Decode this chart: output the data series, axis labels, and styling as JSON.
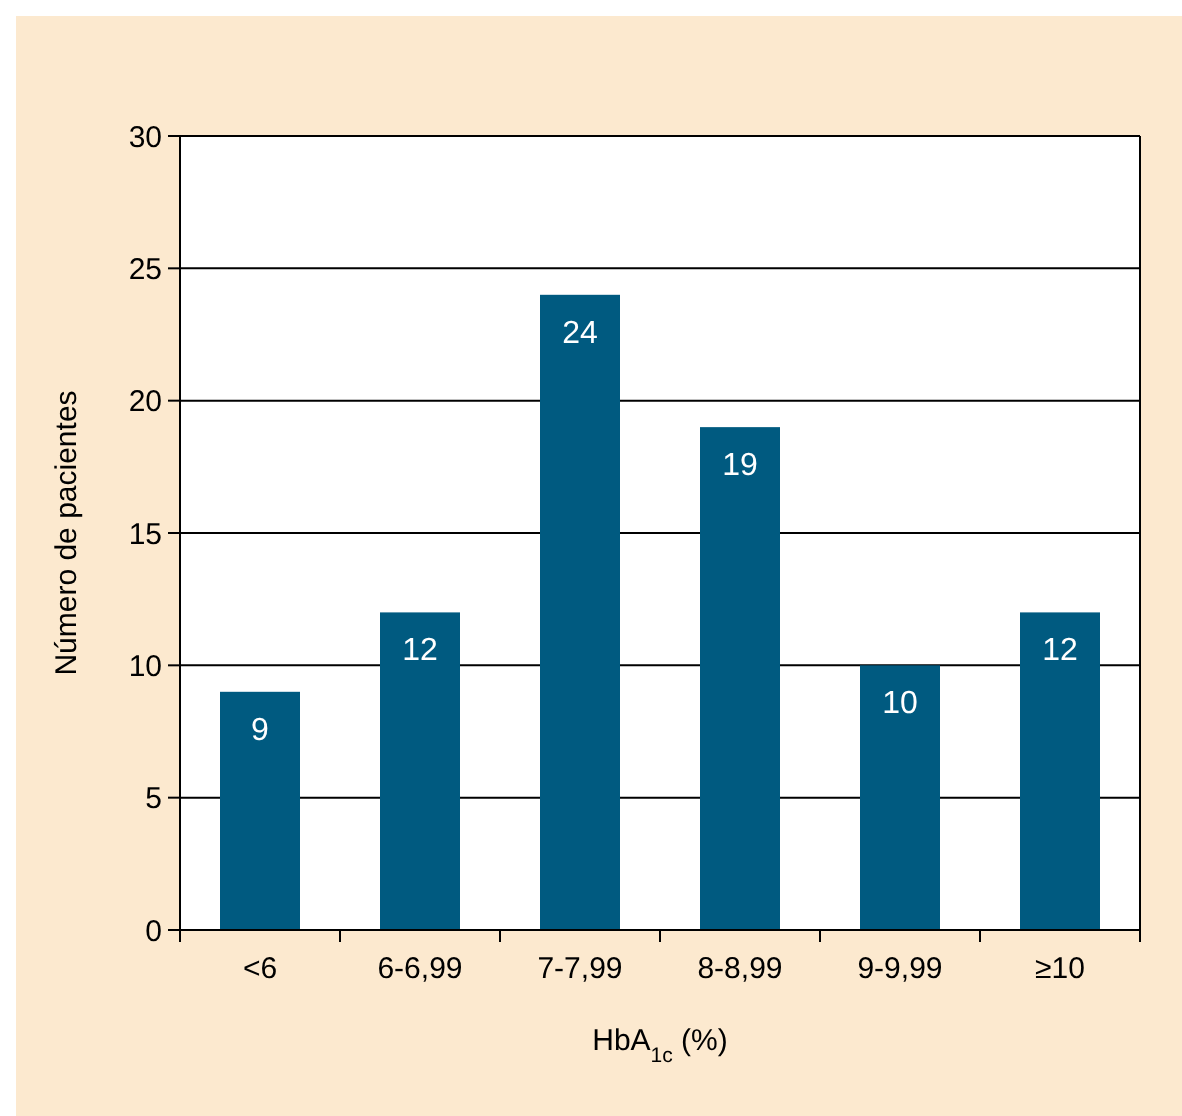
{
  "chart_data": {
    "type": "bar",
    "xlabel": "HbA$_{1c}$ (%)",
    "ylabel": "Número de pacientes",
    "categories": [
      "<6",
      "6-6,99",
      "7-7,99",
      "8-8,99",
      "9-9,99",
      "≥10"
    ],
    "values": [
      9,
      12,
      24,
      19,
      10,
      12
    ],
    "color": "#005a80",
    "ylim": [
      0,
      30
    ],
    "yticks": [
      0,
      5,
      10,
      15,
      20,
      25,
      30
    ],
    "grid": "y",
    "data_labels": true
  }
}
